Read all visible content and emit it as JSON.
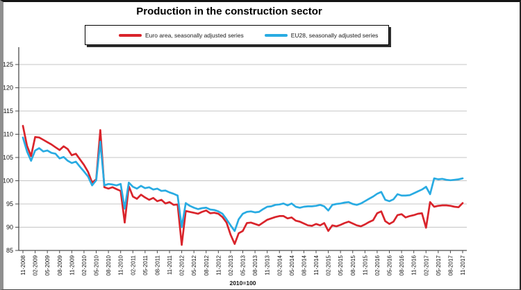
{
  "title": "Production in the construction sector",
  "legend": {
    "items": [
      {
        "label": "Euro area, seasonally adjusted series",
        "color": "#d9242b"
      },
      {
        "label": "EU28, seasonally adjusted series",
        "color": "#29abe2"
      }
    ]
  },
  "chart_data": {
    "type": "line",
    "title": "Production in the construction sector",
    "xlabel": "2010=100",
    "ylabel": "",
    "ylim": [
      85,
      129
    ],
    "y_ticks": [
      85,
      90,
      95,
      100,
      105,
      110,
      115,
      120,
      125
    ],
    "grid": "horizontal",
    "legend_position": "top",
    "x_monthly_start": "11-2008",
    "x_monthly_end": "11-2017",
    "x_tick_labels": [
      "11-2008",
      "02-2009",
      "05-2009",
      "08-2009",
      "11-2009",
      "02-2010",
      "05-2010",
      "08-2010",
      "11-2010",
      "02-2011",
      "05-2011",
      "08-2011",
      "11-2011",
      "02-2012",
      "05-2012",
      "08-2012",
      "11-2012",
      "02-2013",
      "05-2013",
      "08-2013",
      "11-2013",
      "02-2014",
      "05-2014",
      "08-2014",
      "11-2014",
      "02-2015",
      "05-2015",
      "08-2015",
      "11-2015",
      "02-2016",
      "05-2016",
      "08-2016",
      "11-2016",
      "02-2017",
      "05-2017",
      "08-2017",
      "11-2017"
    ],
    "series": [
      {
        "name": "Euro area, seasonally adjusted series",
        "color": "#d9242b",
        "values": [
          111.8,
          107.5,
          105.3,
          109.4,
          109.3,
          108.8,
          108.3,
          107.8,
          107.2,
          106.6,
          107.4,
          106.8,
          105.5,
          105.8,
          104.6,
          103.4,
          101.9,
          99.6,
          100.3,
          110.9,
          98.6,
          98.3,
          98.6,
          98.2,
          97.8,
          91.0,
          98.8,
          96.6,
          96.1,
          97.0,
          96.4,
          95.9,
          96.3,
          95.6,
          95.9,
          95.1,
          95.4,
          94.8,
          94.9,
          86.2,
          93.5,
          93.3,
          93.1,
          92.9,
          93.3,
          93.6,
          93.0,
          93.1,
          92.9,
          92.2,
          91.0,
          88.4,
          86.4,
          88.7,
          89.2,
          90.9,
          91.0,
          90.7,
          90.4,
          91.0,
          91.6,
          91.9,
          92.2,
          92.4,
          92.4,
          91.9,
          92.1,
          91.4,
          91.2,
          90.8,
          90.4,
          90.3,
          90.7,
          90.4,
          90.9,
          89.2,
          90.4,
          90.2,
          90.5,
          90.9,
          91.2,
          90.8,
          90.4,
          90.2,
          90.6,
          91.1,
          91.5,
          93.0,
          93.4,
          91.3,
          90.7,
          91.2,
          92.6,
          92.8,
          92.1,
          92.4,
          92.6,
          92.9,
          93.0,
          89.9,
          95.4,
          94.4,
          94.6,
          94.7,
          94.7,
          94.6,
          94.4,
          94.3,
          95.2
        ]
      },
      {
        "name": "EU28, seasonally adjusted series",
        "color": "#29abe2",
        "values": [
          109.3,
          106.3,
          104.3,
          106.5,
          107.0,
          106.3,
          106.5,
          106.0,
          105.8,
          104.8,
          105.1,
          104.3,
          103.8,
          104.1,
          103.0,
          102.0,
          100.9,
          99.0,
          100.1,
          108.4,
          99.0,
          99.3,
          99.2,
          99.0,
          99.3,
          94.0,
          99.6,
          98.7,
          98.3,
          98.9,
          98.4,
          98.6,
          98.1,
          98.3,
          97.8,
          97.9,
          97.5,
          97.2,
          96.8,
          90.0,
          95.2,
          94.6,
          94.2,
          93.9,
          94.1,
          94.2,
          93.8,
          93.7,
          93.4,
          92.9,
          91.7,
          90.4,
          89.2,
          91.7,
          92.9,
          93.3,
          93.4,
          93.2,
          93.3,
          93.9,
          94.4,
          94.5,
          94.8,
          94.9,
          95.1,
          94.7,
          95.1,
          94.4,
          94.2,
          94.4,
          94.5,
          94.5,
          94.6,
          94.8,
          94.5,
          93.6,
          94.8,
          95.0,
          95.1,
          95.3,
          95.4,
          95.0,
          94.8,
          95.1,
          95.6,
          96.1,
          96.6,
          97.2,
          97.6,
          95.9,
          95.6,
          96.0,
          97.1,
          96.8,
          96.8,
          96.9,
          97.3,
          97.7,
          98.1,
          98.7,
          97.1,
          100.5,
          100.3,
          100.4,
          100.2,
          100.1,
          100.2,
          100.3,
          100.5
        ]
      }
    ]
  }
}
